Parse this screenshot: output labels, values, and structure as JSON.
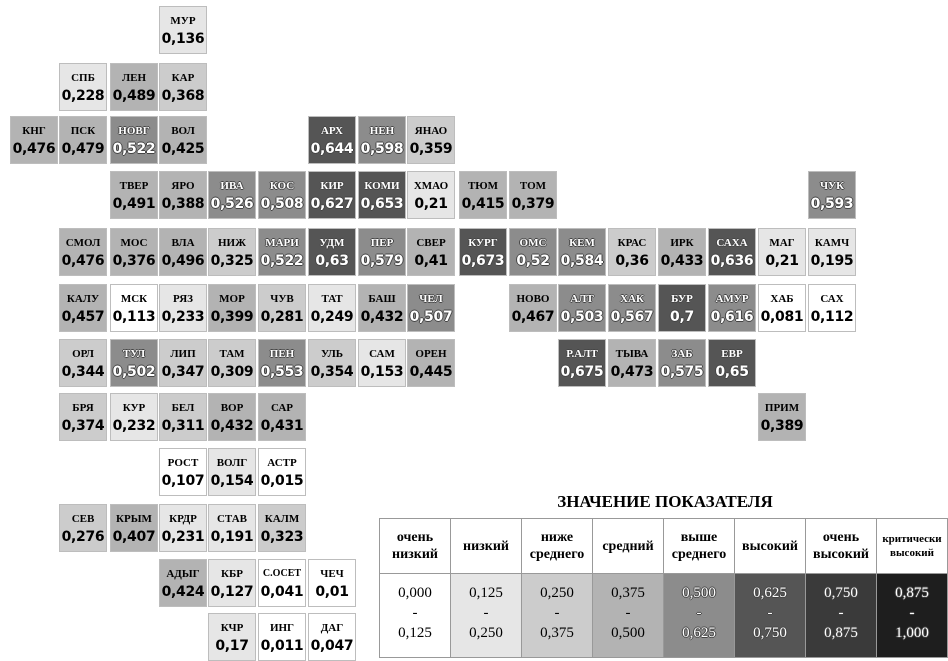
{
  "map": {
    "regions": [
      {
        "abbr": "МУР",
        "value": "0,136",
        "row": 0,
        "col": 3
      },
      {
        "abbr": "СПБ",
        "value": "0,228",
        "row": 1,
        "col": 1
      },
      {
        "abbr": "ЛЕН",
        "value": "0,489",
        "row": 1,
        "col": 2
      },
      {
        "abbr": "КАР",
        "value": "0,368",
        "row": 1,
        "col": 3
      },
      {
        "abbr": "КНГ",
        "value": "0,476",
        "row": 2,
        "col": 0
      },
      {
        "abbr": "ПСК",
        "value": "0,479",
        "row": 2,
        "col": 1
      },
      {
        "abbr": "НОВГ",
        "value": "0,522",
        "row": 2,
        "col": 2
      },
      {
        "abbr": "ВОЛ",
        "value": "0,425",
        "row": 2,
        "col": 3
      },
      {
        "abbr": "АРХ",
        "value": "0,644",
        "row": 2,
        "col": 6
      },
      {
        "abbr": "НЕН",
        "value": "0,598",
        "row": 2,
        "col": 7
      },
      {
        "abbr": "ЯНАО",
        "value": "0,359",
        "row": 2,
        "col": 8
      },
      {
        "abbr": "ТВЕР",
        "value": "0,491",
        "row": 3,
        "col": 2
      },
      {
        "abbr": "ЯРО",
        "value": "0,388",
        "row": 3,
        "col": 3
      },
      {
        "abbr": "ИВА",
        "value": "0,526",
        "row": 3,
        "col": 4
      },
      {
        "abbr": "КОС",
        "value": "0,508",
        "row": 3,
        "col": 5
      },
      {
        "abbr": "КИР",
        "value": "0,627",
        "row": 3,
        "col": 6
      },
      {
        "abbr": "КОМИ",
        "value": "0,653",
        "row": 3,
        "col": 7
      },
      {
        "abbr": "ХМАО",
        "value": "0,21",
        "row": 3,
        "col": 8
      },
      {
        "abbr": "ТЮМ",
        "value": "0,415",
        "row": 3,
        "col": 9
      },
      {
        "abbr": "ТОМ",
        "value": "0,379",
        "row": 3,
        "col": 10
      },
      {
        "abbr": "ЧУК",
        "value": "0,593",
        "row": 3,
        "col": 16
      },
      {
        "abbr": "СМОЛ",
        "value": "0,476",
        "row": 4,
        "col": 1
      },
      {
        "abbr": "МОС",
        "value": "0,376",
        "row": 4,
        "col": 2
      },
      {
        "abbr": "ВЛА",
        "value": "0,496",
        "row": 4,
        "col": 3
      },
      {
        "abbr": "НИЖ",
        "value": "0,325",
        "row": 4,
        "col": 4
      },
      {
        "abbr": "МАРИ",
        "value": "0,522",
        "row": 4,
        "col": 5
      },
      {
        "abbr": "УДМ",
        "value": "0,63",
        "row": 4,
        "col": 6
      },
      {
        "abbr": "ПЕР",
        "value": "0,579",
        "row": 4,
        "col": 7
      },
      {
        "abbr": "СВЕР",
        "value": "0,41",
        "row": 4,
        "col": 8
      },
      {
        "abbr": "КУРГ",
        "value": "0,673",
        "row": 4,
        "col": 9
      },
      {
        "abbr": "ОМС",
        "value": "0,52",
        "row": 4,
        "col": 10
      },
      {
        "abbr": "КЕМ",
        "value": "0,584",
        "row": 4,
        "col": 11
      },
      {
        "abbr": "КРАС",
        "value": "0,36",
        "row": 4,
        "col": 12
      },
      {
        "abbr": "ИРК",
        "value": "0,433",
        "row": 4,
        "col": 13
      },
      {
        "abbr": "САХА",
        "value": "0,636",
        "row": 4,
        "col": 14
      },
      {
        "abbr": "МАГ",
        "value": "0,21",
        "row": 4,
        "col": 15
      },
      {
        "abbr": "КАМЧ",
        "value": "0,195",
        "row": 4,
        "col": 16
      },
      {
        "abbr": "КАЛУ",
        "value": "0,457",
        "row": 5,
        "col": 1
      },
      {
        "abbr": "МСК",
        "value": "0,113",
        "row": 5,
        "col": 2
      },
      {
        "abbr": "РЯЗ",
        "value": "0,233",
        "row": 5,
        "col": 3
      },
      {
        "abbr": "МОР",
        "value": "0,399",
        "row": 5,
        "col": 4
      },
      {
        "abbr": "ЧУВ",
        "value": "0,281",
        "row": 5,
        "col": 5
      },
      {
        "abbr": "ТАТ",
        "value": "0,249",
        "row": 5,
        "col": 6
      },
      {
        "abbr": "БАШ",
        "value": "0,432",
        "row": 5,
        "col": 7
      },
      {
        "abbr": "ЧЕЛ",
        "value": "0,507",
        "row": 5,
        "col": 8
      },
      {
        "abbr": "НОВО",
        "value": "0,467",
        "row": 5,
        "col": 10
      },
      {
        "abbr": "АЛТ",
        "value": "0,503",
        "row": 5,
        "col": 11
      },
      {
        "abbr": "ХАК",
        "value": "0,567",
        "row": 5,
        "col": 12
      },
      {
        "abbr": "БУР",
        "value": "0,7",
        "row": 5,
        "col": 13
      },
      {
        "abbr": "АМУР",
        "value": "0,616",
        "row": 5,
        "col": 14
      },
      {
        "abbr": "ХАБ",
        "value": "0,081",
        "row": 5,
        "col": 15
      },
      {
        "abbr": "САХ",
        "value": "0,112",
        "row": 5,
        "col": 16
      },
      {
        "abbr": "ОРЛ",
        "value": "0,344",
        "row": 6,
        "col": 1
      },
      {
        "abbr": "ТУЛ",
        "value": "0,502",
        "row": 6,
        "col": 2
      },
      {
        "abbr": "ЛИП",
        "value": "0,347",
        "row": 6,
        "col": 3
      },
      {
        "abbr": "ТАМ",
        "value": "0,309",
        "row": 6,
        "col": 4
      },
      {
        "abbr": "ПЕН",
        "value": "0,553",
        "row": 6,
        "col": 5
      },
      {
        "abbr": "УЛЬ",
        "value": "0,354",
        "row": 6,
        "col": 6
      },
      {
        "abbr": "САМ",
        "value": "0,153",
        "row": 6,
        "col": 7
      },
      {
        "abbr": "ОРЕН",
        "value": "0,445",
        "row": 6,
        "col": 8
      },
      {
        "abbr": "Р.АЛТ",
        "value": "0,675",
        "row": 6,
        "col": 11
      },
      {
        "abbr": "ТЫВА",
        "value": "0,473",
        "row": 6,
        "col": 12
      },
      {
        "abbr": "ЗАБ",
        "value": "0,575",
        "row": 6,
        "col": 13
      },
      {
        "abbr": "ЕВР",
        "value": "0,65",
        "row": 6,
        "col": 14
      },
      {
        "abbr": "БРЯ",
        "value": "0,374",
        "row": 7,
        "col": 1
      },
      {
        "abbr": "КУР",
        "value": "0,232",
        "row": 7,
        "col": 2
      },
      {
        "abbr": "БЕЛ",
        "value": "0,311",
        "row": 7,
        "col": 3
      },
      {
        "abbr": "ВОР",
        "value": "0,432",
        "row": 7,
        "col": 4
      },
      {
        "abbr": "САР",
        "value": "0,431",
        "row": 7,
        "col": 5
      },
      {
        "abbr": "ПРИМ",
        "value": "0,389",
        "row": 7,
        "col": 15
      },
      {
        "abbr": "РОСТ",
        "value": "0,107",
        "row": 8,
        "col": 3
      },
      {
        "abbr": "ВОЛГ",
        "value": "0,154",
        "row": 8,
        "col": 4
      },
      {
        "abbr": "АСТР",
        "value": "0,015",
        "row": 8,
        "col": 5
      },
      {
        "abbr": "СЕВ",
        "value": "0,276",
        "row": 9,
        "col": 1
      },
      {
        "abbr": "КРЫМ",
        "value": "0,407",
        "row": 9,
        "col": 2
      },
      {
        "abbr": "КРДР",
        "value": "0,231",
        "row": 9,
        "col": 3
      },
      {
        "abbr": "СТАВ",
        "value": "0,191",
        "row": 9,
        "col": 4
      },
      {
        "abbr": "КАЛМ",
        "value": "0,323",
        "row": 9,
        "col": 5
      },
      {
        "abbr": "АДЫГ",
        "value": "0,424",
        "row": 10,
        "col": 3
      },
      {
        "abbr": "КБР",
        "value": "0,127",
        "row": 10,
        "col": 4
      },
      {
        "abbr": "С.ОСЕТ",
        "value": "0,041",
        "row": 10,
        "col": 5
      },
      {
        "abbr": "ЧЕЧ",
        "value": "0,01",
        "row": 10,
        "col": 6
      },
      {
        "abbr": "КЧР",
        "value": "0,17",
        "row": 11,
        "col": 4
      },
      {
        "abbr": "ИНГ",
        "value": "0,011",
        "row": 11,
        "col": 5
      },
      {
        "abbr": "ДАГ",
        "value": "0,047",
        "row": 11,
        "col": 6
      }
    ]
  },
  "legend": {
    "title": "ЗНАЧЕНИЕ ПОКАЗАТЕЛЯ",
    "classes": [
      {
        "label": "очень низкий",
        "from": "0,000",
        "dash": "-",
        "to": "0,125",
        "color": "#ffffff",
        "dark": false
      },
      {
        "label": "низкий",
        "from": "0,125",
        "dash": "-",
        "to": "0,250",
        "color": "#e6e6e6",
        "dark": false
      },
      {
        "label": "ниже среднего",
        "from": "0,250",
        "dash": "-",
        "to": "0,375",
        "color": "#cccccc",
        "dark": false
      },
      {
        "label": "средний",
        "from": "0,375",
        "dash": "-",
        "to": "0,500",
        "color": "#b3b3b3",
        "dark": false
      },
      {
        "label": "выше среднего",
        "from": "0,500",
        "dash": "-",
        "to": "0,625",
        "color": "#8c8c8c",
        "dark": true
      },
      {
        "label": "высокий",
        "from": "0,625",
        "dash": "-",
        "to": "0,750",
        "color": "#555555",
        "dark": true
      },
      {
        "label": "очень высокий",
        "from": "0,750",
        "dash": "-",
        "to": "0,875",
        "color": "#3a3a3a",
        "dark": true
      },
      {
        "label": "критически высокий",
        "from": "0,875",
        "dash": "-",
        "to": "1,000",
        "color": "#1e1e1e",
        "dark": true
      }
    ]
  }
}
